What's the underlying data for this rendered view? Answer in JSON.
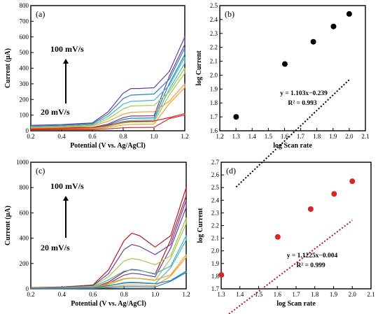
{
  "chart_data": [
    {
      "type": "line",
      "panel_label": "(a)",
      "xlabel": "Potential (V vs. Ag/AgCl)",
      "ylabel": "Current (μA)",
      "xlim": [
        0.2,
        1.2
      ],
      "ylim": [
        0,
        800
      ],
      "xticks": [
        0.2,
        0.4,
        0.6,
        0.8,
        1.0,
        1.2
      ],
      "yticks": [
        0,
        100,
        200,
        300,
        400,
        500,
        600,
        700,
        800
      ],
      "annotations": {
        "top": "100 mV/s",
        "bottom": "20 mV/s"
      },
      "series": [
        {
          "color": "#6a3d9a",
          "peak": 270,
          "end": 600,
          "start": 35,
          "x": [
            0.2,
            0.4,
            0.6,
            0.7,
            0.8,
            0.85,
            0.9,
            1.0,
            1.1,
            1.2
          ],
          "values": [
            35,
            40,
            50,
            120,
            240,
            270,
            270,
            275,
            380,
            600
          ]
        },
        {
          "color": "#2c7fb8",
          "peak": 230,
          "end": 530,
          "start": 30,
          "x": [
            0.2,
            0.4,
            0.6,
            0.7,
            0.8,
            0.85,
            0.9,
            1.0,
            1.1,
            1.2
          ],
          "values": [
            30,
            35,
            45,
            105,
            205,
            228,
            230,
            235,
            330,
            530
          ]
        },
        {
          "color": "#41b6c4",
          "peak": 190,
          "end": 470,
          "start": 26,
          "x": [
            0.2,
            0.4,
            0.6,
            0.7,
            0.8,
            0.85,
            0.9,
            1.0,
            1.1,
            1.2
          ],
          "values": [
            26,
            30,
            40,
            90,
            170,
            188,
            190,
            195,
            290,
            470
          ]
        },
        {
          "color": "#a1c94a",
          "peak": 160,
          "end": 400,
          "start": 22,
          "x": [
            0.2,
            0.4,
            0.6,
            0.7,
            0.8,
            0.85,
            0.9,
            1.0,
            1.1,
            1.2
          ],
          "values": [
            22,
            26,
            35,
            75,
            140,
            158,
            160,
            162,
            250,
            400
          ]
        },
        {
          "color": "#f0a030",
          "peak": 120,
          "end": 300,
          "start": 18,
          "x": [
            0.2,
            0.4,
            0.6,
            0.7,
            0.8,
            0.85,
            0.9,
            1.0,
            1.1,
            1.2
          ],
          "values": [
            18,
            22,
            30,
            60,
            105,
            118,
            120,
            122,
            190,
            300
          ]
        },
        {
          "color": "#d62728",
          "peak": 60,
          "end": 110,
          "start": 12,
          "x": [
            0.2,
            0.4,
            0.6,
            0.7,
            0.8,
            0.85,
            0.9,
            1.0,
            1.1,
            1.2
          ],
          "values": [
            12,
            15,
            20,
            35,
            55,
            60,
            60,
            62,
            85,
            110
          ]
        }
      ]
    },
    {
      "type": "scatter",
      "panel_label": "(b)",
      "xlabel": "log Scan rate",
      "ylabel": "log Current",
      "xlim": [
        1.2,
        2.1
      ],
      "ylim": [
        1.6,
        2.5
      ],
      "xticks": [
        1.2,
        1.3,
        1.4,
        1.5,
        1.6,
        1.7,
        1.8,
        1.9,
        2.0,
        2.1
      ],
      "yticks": [
        1.6,
        1.7,
        1.8,
        1.9,
        2.0,
        2.1,
        2.2,
        2.3,
        2.4,
        2.5
      ],
      "x": [
        1.301,
        1.602,
        1.778,
        1.903,
        2.0
      ],
      "values": [
        1.7,
        2.08,
        2.24,
        2.35,
        2.44
      ],
      "marker_color": "#000000",
      "fit": {
        "slope": 1.103,
        "intercept": -0.239,
        "color": "#000000"
      },
      "equation": "y = 1.103x−0.239",
      "r2": "R² = 0.993"
    },
    {
      "type": "line",
      "panel_label": "(c)",
      "xlabel": "Potential (V vs. Ag/AgCl)",
      "ylabel": "Current (μA)",
      "xlim": [
        0.2,
        1.2
      ],
      "ylim": [
        0,
        1000
      ],
      "xticks": [
        0.2,
        0.4,
        0.6,
        0.8,
        1.0,
        1.2
      ],
      "yticks": [
        0,
        200,
        400,
        600,
        800,
        1000
      ],
      "annotations": {
        "top": "100 mV/s",
        "bottom": "20 mV/s"
      },
      "series": [
        {
          "color": "#b2182b",
          "x": [
            0.2,
            0.4,
            0.6,
            0.7,
            0.8,
            0.85,
            0.9,
            1.0,
            1.1,
            1.2
          ],
          "values": [
            10,
            15,
            30,
            150,
            380,
            440,
            420,
            330,
            420,
            800
          ]
        },
        {
          "color": "#6a3d9a",
          "x": [
            0.2,
            0.4,
            0.6,
            0.7,
            0.8,
            0.85,
            0.9,
            1.0,
            1.1,
            1.2
          ],
          "values": [
            8,
            12,
            25,
            120,
            310,
            350,
            335,
            270,
            350,
            700
          ]
        },
        {
          "color": "#a1c94a",
          "x": [
            0.2,
            0.4,
            0.6,
            0.7,
            0.8,
            0.85,
            0.9,
            1.0,
            1.1,
            1.2
          ],
          "values": [
            6,
            10,
            20,
            95,
            220,
            240,
            230,
            190,
            260,
            560
          ]
        },
        {
          "color": "#41b6c4",
          "x": [
            0.2,
            0.4,
            0.6,
            0.7,
            0.8,
            0.85,
            0.9,
            1.0,
            1.1,
            1.2
          ],
          "values": [
            5,
            8,
            16,
            70,
            140,
            150,
            145,
            120,
            180,
            420
          ]
        },
        {
          "color": "#f0a030",
          "x": [
            0.2,
            0.4,
            0.6,
            0.7,
            0.8,
            0.85,
            0.9,
            1.0,
            1.1,
            1.2
          ],
          "values": [
            4,
            6,
            12,
            45,
            80,
            85,
            82,
            70,
            110,
            270
          ]
        },
        {
          "color": "#2c7fb8",
          "x": [
            0.2,
            0.4,
            0.6,
            0.7,
            0.8,
            0.85,
            0.9,
            1.0,
            1.1,
            1.2
          ],
          "values": [
            3,
            5,
            8,
            25,
            45,
            48,
            46,
            40,
            65,
            140
          ]
        }
      ]
    },
    {
      "type": "scatter",
      "panel_label": "(d)",
      "xlabel": "log Scan rate",
      "ylabel": "log Current",
      "xlim": [
        1.3,
        2.1
      ],
      "ylim": [
        1.7,
        2.7
      ],
      "xticks": [
        1.3,
        1.4,
        1.5,
        1.6,
        1.7,
        1.8,
        1.9,
        2.0,
        2.1
      ],
      "yticks": [
        1.7,
        1.8,
        1.9,
        2.0,
        2.1,
        2.2,
        2.3,
        2.4,
        2.5,
        2.6,
        2.7
      ],
      "x": [
        1.301,
        1.602,
        1.778,
        1.903,
        2.0
      ],
      "values": [
        1.81,
        2.11,
        2.33,
        2.45,
        2.55
      ],
      "marker_color": "#d62728",
      "fit": {
        "slope": 1.1225,
        "intercept": -0.004,
        "color": "#b2182b"
      },
      "equation": "y = 1.1225x−0.004",
      "r2": "R² = 0.999"
    }
  ]
}
